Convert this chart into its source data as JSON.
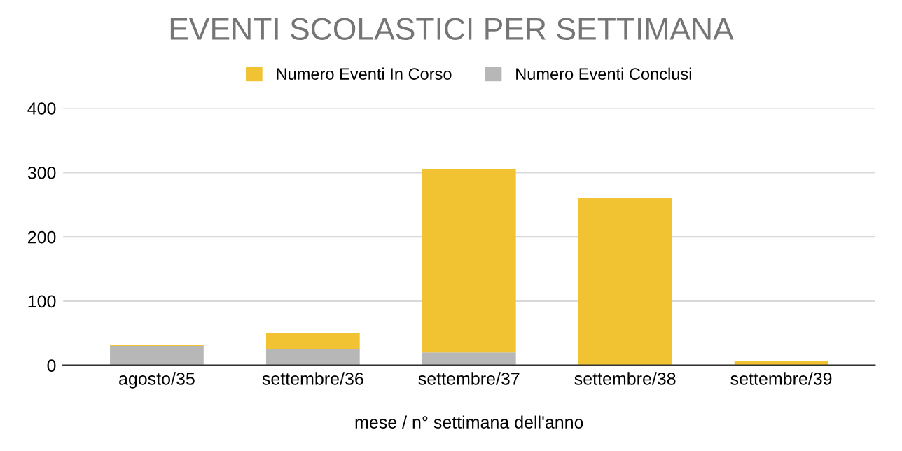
{
  "chart_data": {
    "type": "bar",
    "title": "EVENTI SCOLASTICI PER SETTIMANA",
    "xlabel": "mese / n° settimana dell'anno",
    "categories": [
      "agosto/35",
      "settembre/36",
      "settembre/37",
      "settembre/38",
      "settembre/39"
    ],
    "stacked": true,
    "series": [
      {
        "name": "Numero Eventi Conclusi",
        "color": "#b7b7b7",
        "values": [
          30,
          25,
          20,
          0,
          0
        ]
      },
      {
        "name": "Numero Eventi In Corso",
        "color": "#f1c232",
        "values": [
          2,
          25,
          285,
          260,
          7
        ]
      }
    ],
    "ylim": [
      0,
      400
    ],
    "yticks": [
      0,
      100,
      200,
      300,
      400
    ],
    "grid": "y",
    "legend": "top"
  }
}
